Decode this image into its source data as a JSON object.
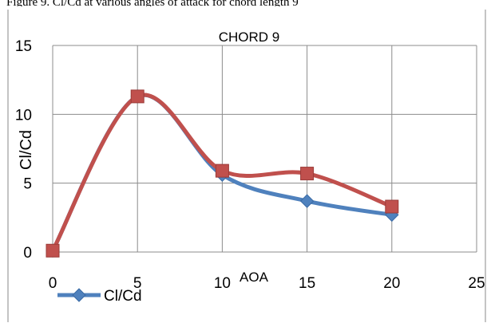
{
  "caption_fragment": "Figure 9. Cl/Cd at various angles of attack for chord length 9",
  "chart_data": {
    "type": "line",
    "title": "CHORD 9",
    "xlabel": "AOA",
    "ylabel": "Cl/Cd",
    "xlim": [
      0,
      25
    ],
    "ylim": [
      0,
      15
    ],
    "x_ticks": [
      "0",
      "5",
      "10",
      "15",
      "20",
      "25"
    ],
    "y_ticks": [
      "0",
      "5",
      "10",
      "15"
    ],
    "grid": true,
    "smooth": true,
    "legend_position": "bottom-left",
    "series": [
      {
        "name": "Cl/Cd",
        "marker": "diamond",
        "color": "#4F81BD",
        "x": [
          0,
          5,
          10,
          15,
          20
        ],
        "y": [
          0.1,
          11.3,
          5.6,
          3.7,
          2.7
        ]
      },
      {
        "name": "",
        "marker": "square",
        "color": "#C0504D",
        "x": [
          0,
          5,
          10,
          15,
          20
        ],
        "y": [
          0.1,
          11.3,
          5.9,
          5.7,
          3.3
        ]
      }
    ]
  }
}
